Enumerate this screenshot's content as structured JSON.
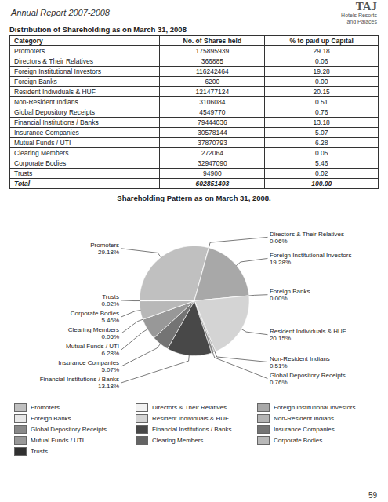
{
  "title": "Annual Report 2007-2008",
  "annotations": [
    "TAJ",
    "Hotels Resorts\nand Palaces",
    "59"
  ],
  "chart_data": [
    {
      "type": "table",
      "title": "Distribution of Shareholding as on March 31, 2008",
      "columns": [
        "Category",
        "No. of Shares held",
        "% to paid up Capital"
      ],
      "rows": [
        [
          "Promoters",
          "175895939",
          "29.18"
        ],
        [
          "Directors & Their Relatives",
          "366885",
          "0.06"
        ],
        [
          "Foreign Institutional Investors",
          "116242464",
          "19.28"
        ],
        [
          "Foreign Banks",
          "6200",
          "0.00"
        ],
        [
          "Resident Individuals & HUF",
          "121477124",
          "20.15"
        ],
        [
          "Non-Resident Indians",
          "3106084",
          "0.51"
        ],
        [
          "Global Depository Receipts",
          "4549770",
          "0.76"
        ],
        [
          "Financial Institutions / Banks",
          "79444036",
          "13.18"
        ],
        [
          "Insurance Companies",
          "30578144",
          "5.07"
        ],
        [
          "Mutual Funds / UTI",
          "37870793",
          "6.28"
        ],
        [
          "Clearing Members",
          "272064",
          "0.05"
        ],
        [
          "Corporate Bodies",
          "32947090",
          "5.46"
        ],
        [
          "Trusts",
          "94900",
          "0.02"
        ],
        [
          "Total",
          "602851493",
          "100.00"
        ]
      ]
    },
    {
      "type": "pie",
      "title": "Shareholding Pattern as on March 31, 2008.",
      "categories": [
        "Promoters",
        "Directors & Their Relatives",
        "Foreign Institutional Investors",
        "Foreign Banks",
        "Resident Individuals & HUF",
        "Non-Resident Indians",
        "Global Depository Receipts",
        "Financial Institutions / Banks",
        "Insurance Companies",
        "Mutual Funds / UTI",
        "Clearing Members",
        "Corporate Bodies",
        "Trusts"
      ],
      "values": [
        29.18,
        0.06,
        19.28,
        0.0001,
        20.15,
        0.51,
        0.76,
        13.18,
        5.07,
        6.28,
        0.05,
        5.46,
        0.02
      ],
      "value_labels": [
        "29.18%",
        "0.06%",
        "19.28%",
        "0.00%",
        "20.15%",
        "0.51%",
        "0.76%",
        "13.18%",
        "5.07%",
        "6.28%",
        "0.05%",
        "5.46%",
        "0.02%"
      ],
      "colors": [
        "#c0c0c0",
        "#f2f2f2",
        "#a8a8a8",
        "#e8e8e8",
        "#d4d4d4",
        "#b4b4b4",
        "#888888",
        "#484848",
        "#747474",
        "#989898",
        "#646464",
        "#b8b8b8",
        "#303030"
      ],
      "data_labels": true,
      "legend": "bottom"
    }
  ]
}
